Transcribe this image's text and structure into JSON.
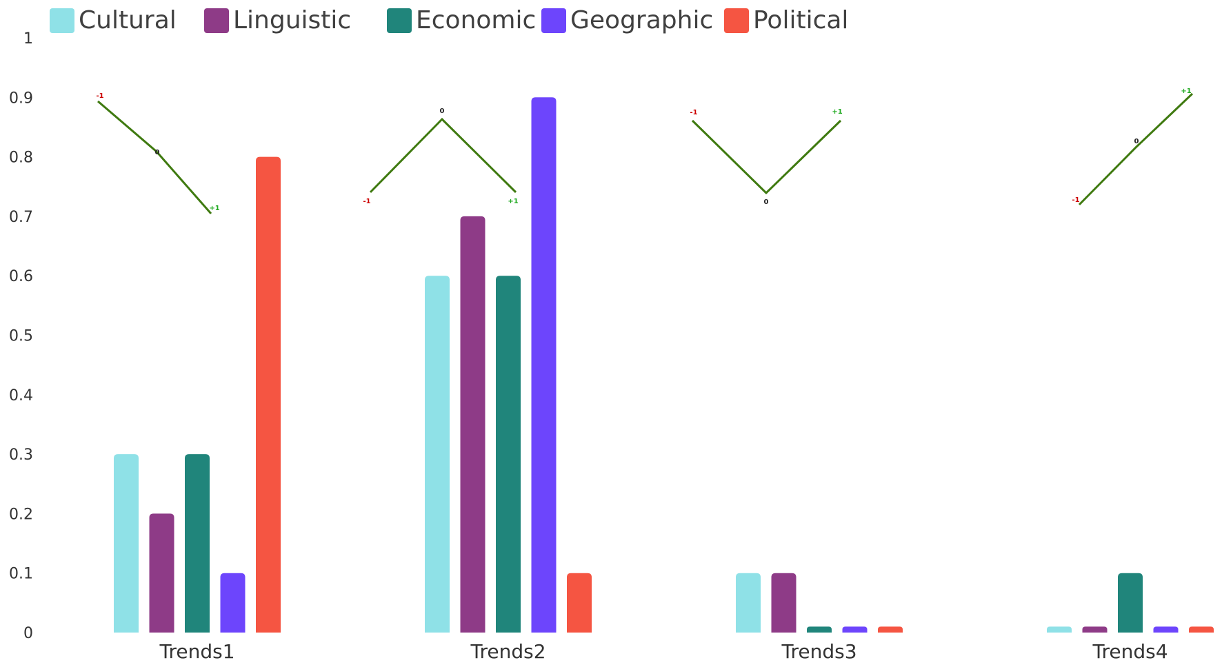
{
  "chart_data": {
    "type": "bar",
    "categories": [
      "Trends1",
      "Trends2",
      "Trends3",
      "Trends4"
    ],
    "series": [
      {
        "name": "Cultural",
        "color": "#8fe1e7",
        "values": [
          0.3,
          0.6,
          0.1,
          0.01
        ]
      },
      {
        "name": "Linguistic",
        "color": "#8e3b87",
        "values": [
          0.2,
          0.7,
          0.1,
          0.01
        ]
      },
      {
        "name": "Economic",
        "color": "#20857b",
        "values": [
          0.3,
          0.6,
          0.01,
          0.1
        ]
      },
      {
        "name": "Geographic",
        "color": "#6d45fc",
        "values": [
          0.1,
          0.9,
          0.01,
          0.01
        ]
      },
      {
        "name": "Political",
        "color": "#f55542",
        "values": [
          0.8,
          0.1,
          0.01,
          0.01
        ]
      }
    ],
    "ylim": [
      0,
      1
    ],
    "yticks": [
      "0",
      "0.1",
      "0.2",
      "0.3",
      "0.4",
      "0.5",
      "0.6",
      "0.7",
      "0.8",
      "0.9",
      "1"
    ],
    "legend_position": "top-left",
    "grid": false,
    "trend_glyphs": [
      {
        "shape": "descending",
        "points": [
          {
            "label": "-1",
            "color": "#cc0000"
          },
          {
            "label": "0",
            "color": "#222222"
          },
          {
            "label": "+1",
            "color": "#22aa22"
          }
        ]
      },
      {
        "shape": "peak",
        "points": [
          {
            "label": "-1",
            "color": "#cc0000"
          },
          {
            "label": "0",
            "color": "#222222"
          },
          {
            "label": "+1",
            "color": "#22aa22"
          }
        ]
      },
      {
        "shape": "valley",
        "points": [
          {
            "label": "-1",
            "color": "#cc0000"
          },
          {
            "label": "0",
            "color": "#222222"
          },
          {
            "label": "+1",
            "color": "#22aa22"
          }
        ]
      },
      {
        "shape": "ascending",
        "points": [
          {
            "label": "-1",
            "color": "#cc0000"
          },
          {
            "label": "0",
            "color": "#222222"
          },
          {
            "label": "+1",
            "color": "#22aa22"
          }
        ]
      }
    ],
    "trend_line_color": "#3f7a10"
  }
}
